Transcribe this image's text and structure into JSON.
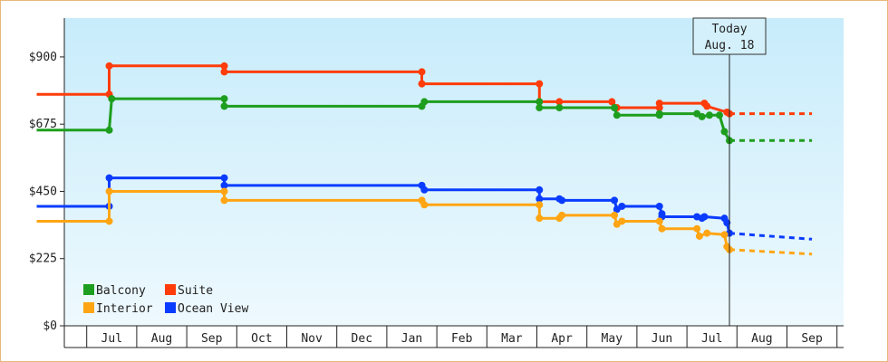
{
  "chart_data": {
    "type": "line",
    "step": true,
    "title": "",
    "xlabel": "",
    "ylabel": "",
    "ylim": [
      0,
      1030
    ],
    "y_ticks": [
      0,
      225,
      450,
      675,
      900
    ],
    "y_tick_labels": [
      "$0",
      "$225",
      "$450",
      "$675",
      "$900"
    ],
    "x_domain": [
      0,
      15.5
    ],
    "month_labels": [
      "Jul",
      "Aug",
      "Sep",
      "Oct",
      "Nov",
      "Dec",
      "Jan",
      "Feb",
      "Mar",
      "Apr",
      "May",
      "Jun",
      "Jul",
      "Aug",
      "Sep"
    ],
    "today": {
      "line1": "Today",
      "line2": "Aug. 18",
      "x": 13.85
    },
    "legend": [
      {
        "name": "Balcony",
        "color": "#1e9e1e"
      },
      {
        "name": "Suite",
        "color": "#ff3c0a"
      },
      {
        "name": "Interior",
        "color": "#ffa514"
      },
      {
        "name": "Ocean View",
        "color": "#0a3cff"
      }
    ],
    "series": [
      {
        "name": "Suite",
        "color": "#ff3c0a",
        "points": [
          [
            0,
            775
          ],
          [
            1.45,
            775
          ],
          [
            1.45,
            870
          ],
          [
            3.75,
            870
          ],
          [
            3.75,
            850
          ],
          [
            7.7,
            850
          ],
          [
            7.7,
            810
          ],
          [
            10.05,
            810
          ],
          [
            10.05,
            750
          ],
          [
            10.45,
            750
          ],
          [
            11.5,
            750
          ],
          [
            11.6,
            730
          ],
          [
            12.45,
            730
          ],
          [
            12.45,
            745
          ],
          [
            13.35,
            745
          ],
          [
            13.4,
            735
          ],
          [
            13.8,
            715
          ],
          [
            13.85,
            710
          ]
        ],
        "projection": [
          [
            13.85,
            710
          ],
          [
            15.5,
            710
          ]
        ]
      },
      {
        "name": "Balcony",
        "color": "#1e9e1e",
        "points": [
          [
            0,
            655
          ],
          [
            1.45,
            655
          ],
          [
            1.5,
            760
          ],
          [
            3.75,
            760
          ],
          [
            3.75,
            735
          ],
          [
            7.7,
            735
          ],
          [
            7.75,
            750
          ],
          [
            10.05,
            750
          ],
          [
            10.05,
            730
          ],
          [
            10.45,
            730
          ],
          [
            11.55,
            730
          ],
          [
            11.6,
            705
          ],
          [
            12.45,
            705
          ],
          [
            12.45,
            710
          ],
          [
            13.2,
            710
          ],
          [
            13.3,
            700
          ],
          [
            13.45,
            705
          ],
          [
            13.65,
            705
          ],
          [
            13.75,
            650
          ],
          [
            13.85,
            620
          ]
        ],
        "projection": [
          [
            13.85,
            620
          ],
          [
            15.5,
            620
          ]
        ]
      },
      {
        "name": "Ocean View",
        "color": "#0a3cff",
        "points": [
          [
            0,
            400
          ],
          [
            1.45,
            400
          ],
          [
            1.45,
            495
          ],
          [
            3.75,
            495
          ],
          [
            3.75,
            470
          ],
          [
            7.7,
            470
          ],
          [
            7.75,
            455
          ],
          [
            10.05,
            455
          ],
          [
            10.05,
            425
          ],
          [
            10.45,
            425
          ],
          [
            10.5,
            420
          ],
          [
            11.55,
            420
          ],
          [
            11.6,
            390
          ],
          [
            11.7,
            400
          ],
          [
            12.45,
            400
          ],
          [
            12.5,
            375
          ],
          [
            12.5,
            365
          ],
          [
            13.2,
            365
          ],
          [
            13.3,
            360
          ],
          [
            13.35,
            365
          ],
          [
            13.75,
            360
          ],
          [
            13.8,
            345
          ],
          [
            13.85,
            310
          ]
        ],
        "projection": [
          [
            13.85,
            310
          ],
          [
            15.5,
            290
          ]
        ]
      },
      {
        "name": "Interior",
        "color": "#ffa514",
        "points": [
          [
            0,
            350
          ],
          [
            1.45,
            350
          ],
          [
            1.45,
            450
          ],
          [
            3.75,
            450
          ],
          [
            3.75,
            420
          ],
          [
            7.7,
            420
          ],
          [
            7.75,
            405
          ],
          [
            10.05,
            405
          ],
          [
            10.05,
            360
          ],
          [
            10.45,
            360
          ],
          [
            10.5,
            370
          ],
          [
            11.55,
            370
          ],
          [
            11.6,
            340
          ],
          [
            11.7,
            350
          ],
          [
            12.45,
            350
          ],
          [
            12.5,
            325
          ],
          [
            13.2,
            325
          ],
          [
            13.25,
            300
          ],
          [
            13.4,
            310
          ],
          [
            13.75,
            305
          ],
          [
            13.8,
            265
          ],
          [
            13.85,
            255
          ]
        ],
        "projection": [
          [
            13.85,
            255
          ],
          [
            15.5,
            240
          ]
        ]
      }
    ]
  }
}
